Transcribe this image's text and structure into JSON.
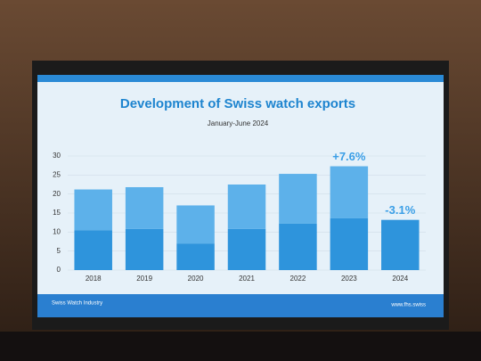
{
  "chart_data": {
    "type": "stacked_bar",
    "title": "Development of Swiss watch exports",
    "subtitle": "January-June 2024",
    "categories": [
      "2018",
      "2019",
      "2020",
      "2021",
      "2022",
      "2023",
      "2024"
    ],
    "series": [
      {
        "color": "#2e94dc",
        "values": [
          10.5,
          10.8,
          7.0,
          10.8,
          12.2,
          13.6,
          13.2
        ]
      },
      {
        "color": "#5db1ea",
        "values": [
          10.7,
          11.0,
          10.0,
          11.7,
          13.1,
          13.7,
          null
        ]
      }
    ],
    "annotations": [
      {
        "text": "+7.6%",
        "category": "2023"
      },
      {
        "text": "-3.1%",
        "category": "2024"
      }
    ],
    "ylim": [
      0,
      30
    ],
    "yticks": [
      0,
      5,
      10,
      15,
      20,
      25,
      30
    ],
    "grid": true,
    "footer_left": "Swiss Watch Industry",
    "footer_right": "www.fhs.swiss"
  }
}
